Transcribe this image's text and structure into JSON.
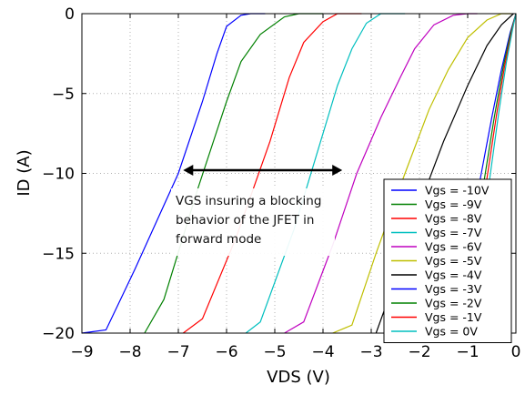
{
  "chart_data": {
    "type": "line",
    "xlabel": "VDS (V)",
    "ylabel": "ID (A)",
    "xlim": [
      -9,
      0
    ],
    "ylim": [
      -20,
      0
    ],
    "xticks": [
      -9,
      -8,
      -7,
      -6,
      -5,
      -4,
      -3,
      -2,
      -1,
      0
    ],
    "yticks": [
      0,
      -5,
      -10,
      -15,
      -20
    ],
    "grid": true,
    "legend_position": "lower-right",
    "annotation": {
      "lines": [
        "VGS insuring a blocking",
        "behavior of the JFET in",
        "forward mode"
      ],
      "arrow": {
        "x_from": -6.9,
        "x_to": -3.6,
        "y": -9.8
      }
    },
    "series": [
      {
        "name": "Vgs = -10V",
        "color": "#0000ff",
        "points": [
          [
            -9.0,
            -20.0
          ],
          [
            -8.5,
            -19.8
          ],
          [
            -7.9,
            -16.0
          ],
          [
            -7.0,
            -10.0
          ],
          [
            -6.5,
            -5.5
          ],
          [
            -6.2,
            -2.5
          ],
          [
            -6.0,
            -0.8
          ],
          [
            -5.7,
            -0.1
          ],
          [
            -5.5,
            0.0
          ],
          [
            -5.2,
            0.0
          ]
        ]
      },
      {
        "name": "Vgs = -9V",
        "color": "#008000",
        "points": [
          [
            -7.7,
            -20.0
          ],
          [
            -7.3,
            -17.9
          ],
          [
            -6.6,
            -11.0
          ],
          [
            -6.0,
            -5.5
          ],
          [
            -5.7,
            -3.0
          ],
          [
            -5.3,
            -1.3
          ],
          [
            -4.8,
            -0.2
          ],
          [
            -4.5,
            0.0
          ],
          [
            -4.0,
            0.0
          ]
        ]
      },
      {
        "name": "Vgs = -8V",
        "color": "#ff0000",
        "points": [
          [
            -6.9,
            -20.0
          ],
          [
            -6.5,
            -19.1
          ],
          [
            -5.8,
            -14.0
          ],
          [
            -5.1,
            -8.0
          ],
          [
            -4.7,
            -4.0
          ],
          [
            -4.4,
            -1.8
          ],
          [
            -4.0,
            -0.5
          ],
          [
            -3.7,
            0.0
          ],
          [
            -3.2,
            0.0
          ]
        ]
      },
      {
        "name": "Vgs = -7V",
        "color": "#00bfbf",
        "points": [
          [
            -5.6,
            -20.0
          ],
          [
            -5.3,
            -19.3
          ],
          [
            -4.6,
            -13.5
          ],
          [
            -4.1,
            -8.5
          ],
          [
            -3.7,
            -4.5
          ],
          [
            -3.4,
            -2.2
          ],
          [
            -3.1,
            -0.6
          ],
          [
            -2.8,
            0.0
          ],
          [
            -2.3,
            0.0
          ]
        ]
      },
      {
        "name": "Vgs = -6V",
        "color": "#bf00bf",
        "points": [
          [
            -4.8,
            -20.0
          ],
          [
            -4.4,
            -19.3
          ],
          [
            -3.8,
            -14.5
          ],
          [
            -3.3,
            -10.0
          ],
          [
            -2.8,
            -6.5
          ],
          [
            -2.4,
            -4.0
          ],
          [
            -2.1,
            -2.2
          ],
          [
            -1.7,
            -0.7
          ],
          [
            -1.3,
            -0.1
          ],
          [
            -1.0,
            0.0
          ],
          [
            -0.8,
            0.0
          ]
        ]
      },
      {
        "name": "Vgs = -5V",
        "color": "#bfbf00",
        "points": [
          [
            -3.8,
            -20.0
          ],
          [
            -3.4,
            -19.5
          ],
          [
            -2.9,
            -15.0
          ],
          [
            -2.3,
            -10.0
          ],
          [
            -1.8,
            -6.0
          ],
          [
            -1.4,
            -3.5
          ],
          [
            -1.0,
            -1.5
          ],
          [
            -0.6,
            -0.4
          ],
          [
            -0.3,
            0.0
          ],
          [
            -0.1,
            0.0
          ]
        ]
      },
      {
        "name": "Vgs = -4V",
        "color": "#000000",
        "points": [
          [
            -2.9,
            -20.0
          ],
          [
            -2.6,
            -17.5
          ],
          [
            -2.0,
            -12.0
          ],
          [
            -1.5,
            -8.0
          ],
          [
            -1.0,
            -4.5
          ],
          [
            -0.6,
            -2.0
          ],
          [
            -0.3,
            -0.7
          ],
          [
            -0.05,
            0.0
          ]
        ]
      },
      {
        "name": "Vgs = -3V",
        "color": "#0000ff",
        "points": [
          [
            -1.3,
            -20.0
          ],
          [
            -1.0,
            -15.0
          ],
          [
            -0.75,
            -10.5
          ],
          [
            -0.5,
            -6.5
          ],
          [
            -0.3,
            -3.5
          ],
          [
            -0.12,
            -1.2
          ],
          [
            0.0,
            0.0
          ]
        ]
      },
      {
        "name": "Vgs = -2V",
        "color": "#008000",
        "points": [
          [
            -1.15,
            -20.0
          ],
          [
            -0.9,
            -15.0
          ],
          [
            -0.65,
            -10.3
          ],
          [
            -0.45,
            -6.5
          ],
          [
            -0.26,
            -3.3
          ],
          [
            -0.1,
            -1.1
          ],
          [
            0.0,
            0.0
          ]
        ]
      },
      {
        "name": "Vgs = -1V",
        "color": "#ff0000",
        "points": [
          [
            -1.05,
            -20.0
          ],
          [
            -0.82,
            -15.0
          ],
          [
            -0.6,
            -10.3
          ],
          [
            -0.4,
            -6.3
          ],
          [
            -0.23,
            -3.2
          ],
          [
            -0.08,
            -1.0
          ],
          [
            0.0,
            0.0
          ]
        ]
      },
      {
        "name": "Vgs = 0V",
        "color": "#00bfbf",
        "points": [
          [
            -0.95,
            -20.0
          ],
          [
            -0.74,
            -15.0
          ],
          [
            -0.55,
            -10.5
          ],
          [
            -0.36,
            -6.3
          ],
          [
            -0.2,
            -3.1
          ],
          [
            -0.07,
            -1.0
          ],
          [
            0.0,
            0.0
          ]
        ]
      }
    ]
  }
}
